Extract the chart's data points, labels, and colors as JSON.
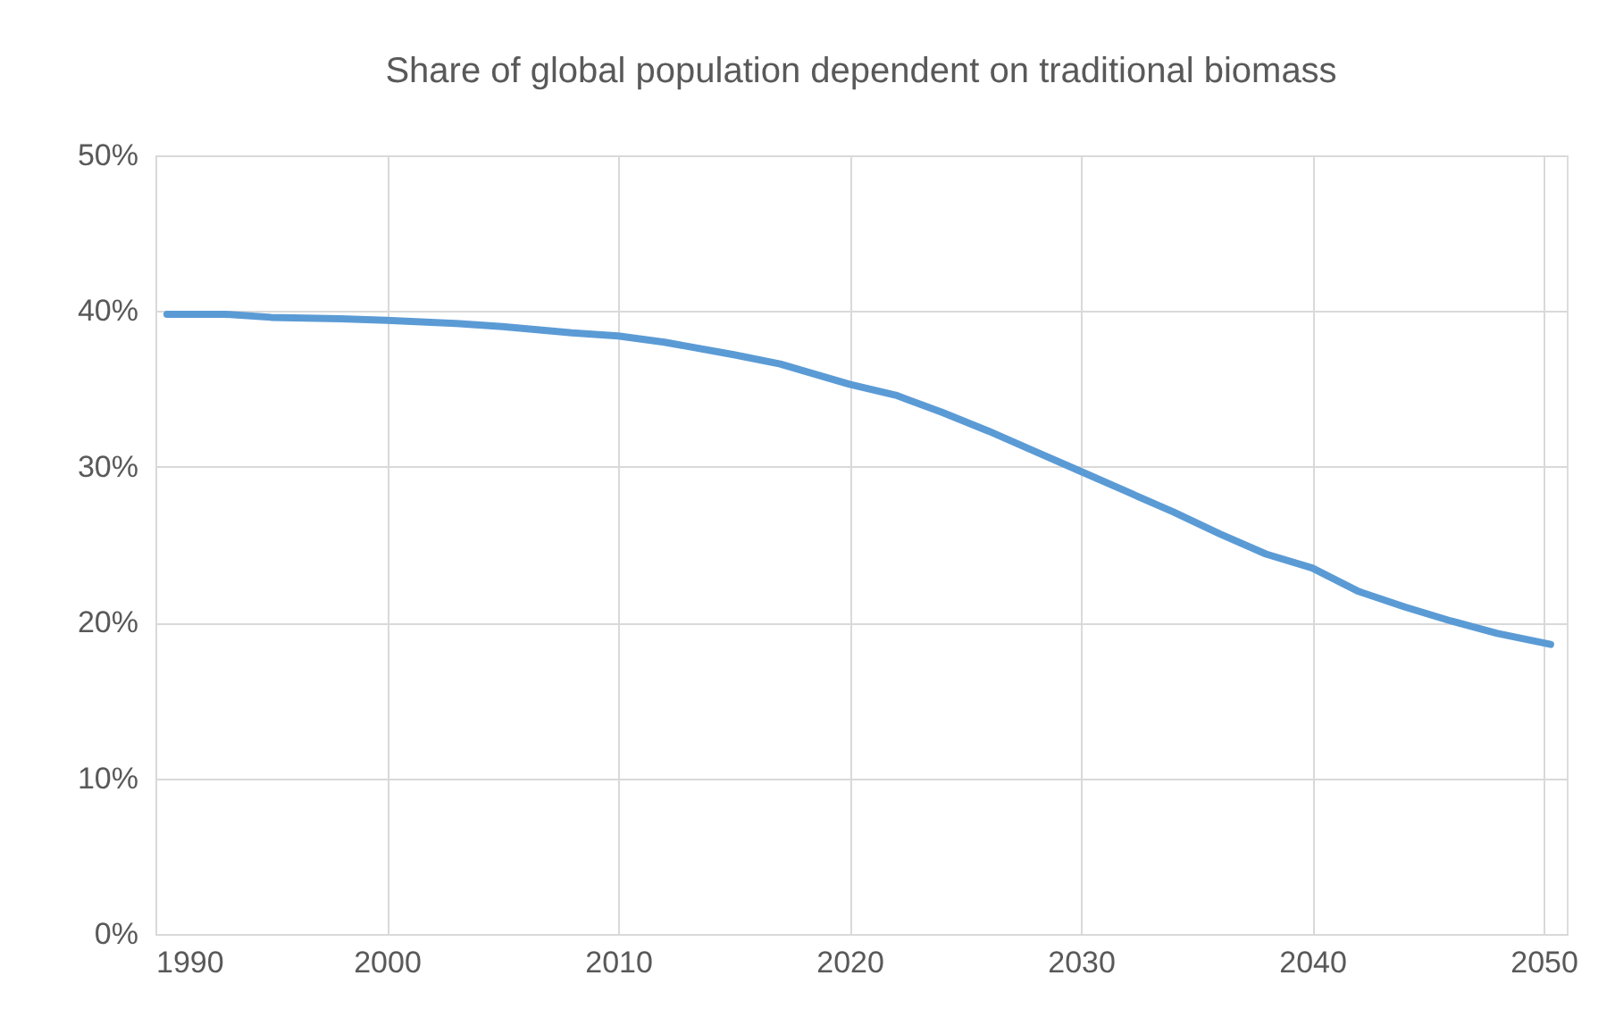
{
  "chart_data": {
    "type": "line",
    "title": "Share of global population dependent on traditional biomass",
    "x": [
      1990.5,
      1993,
      1995,
      1998,
      2000,
      2003,
      2005,
      2008,
      2010,
      2012,
      2015,
      2017,
      2020,
      2022,
      2024,
      2026,
      2028,
      2030,
      2032,
      2034,
      2036,
      2038,
      2040,
      2042,
      2044,
      2046,
      2048,
      2050.3
    ],
    "series": [
      {
        "color": "#5b9bd5",
        "values": [
          39.8,
          39.8,
          39.6,
          39.5,
          39.4,
          39.2,
          39.0,
          38.6,
          38.4,
          38.0,
          37.2,
          36.6,
          35.3,
          34.6,
          33.5,
          32.3,
          31.0,
          29.7,
          28.4,
          27.1,
          25.7,
          24.4,
          23.5,
          22.0,
          21.0,
          20.1,
          19.3,
          18.6
        ]
      }
    ],
    "xlim": [
      1990,
      2051
    ],
    "xticks": [
      1990,
      2000,
      2010,
      2020,
      2030,
      2040,
      2050
    ],
    "ylim": [
      0,
      50
    ],
    "yticks": [
      {
        "value": 0,
        "label": "0%"
      },
      {
        "value": 10,
        "label": "10%"
      },
      {
        "value": 20,
        "label": "20%"
      },
      {
        "value": 30,
        "label": "30%"
      },
      {
        "value": 40,
        "label": "40%"
      },
      {
        "value": 50,
        "label": "50%"
      }
    ],
    "grid": true,
    "marker": "none",
    "line_style": "solid"
  }
}
